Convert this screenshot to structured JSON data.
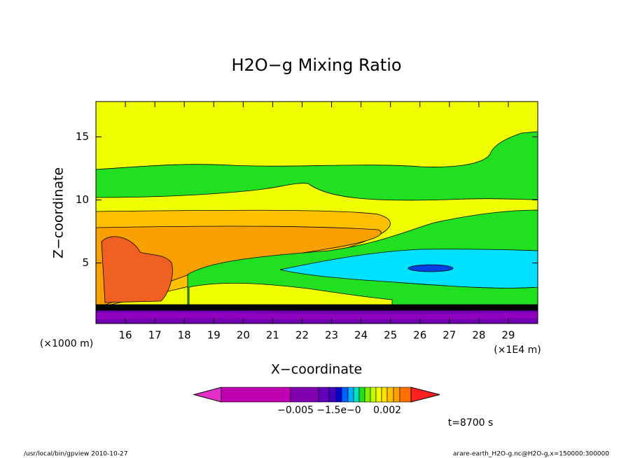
{
  "chart_data": {
    "type": "contour",
    "title": "H2O−g Mixing Ratio",
    "x_label": "X−coordinate",
    "y_label": "Z−coordinate",
    "x_unit": "(×1E4 m)",
    "y_unit": "(×1000 m)",
    "xlim": [
      15,
      30
    ],
    "ylim": [
      0.2,
      17.8
    ],
    "xticks": [
      16,
      17,
      18,
      19,
      20,
      21,
      22,
      23,
      24,
      25,
      26,
      27,
      28,
      29
    ],
    "yticks": [
      5,
      10,
      15
    ],
    "colorbar": {
      "colors": [
        "#e030c8",
        "#c000b0",
        "#8000b0",
        "#6000b8",
        "#4000c0",
        "#0000d0",
        "#0060ff",
        "#00b0ff",
        "#00e0c0",
        "#20e020",
        "#80f000",
        "#c0ff00",
        "#f0ff00",
        "#ffe000",
        "#ffc000",
        "#ffa000",
        "#ff7000",
        "#ff2020"
      ],
      "labels": [
        "−0.005",
        "−1.5e−0",
        "0.002"
      ]
    },
    "time_label": "t=8700 s",
    "footer_left": "/usr/local/bin/gpview   2010-10-27",
    "footer_right": "arare-earth_H2O-g.nc@H2O-g,x=150000:300000"
  }
}
